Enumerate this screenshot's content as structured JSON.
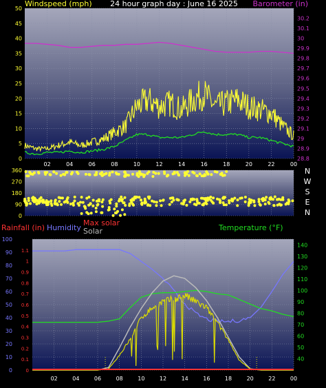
{
  "header": {
    "wind_label": "Windspeed (mph)",
    "title": "24 hour graph day : June 16 2025",
    "baro_label": "Barometer (in)"
  },
  "colors": {
    "background": "#000000",
    "wind_gust": "#ffff33",
    "wind_avg": "#22dd22",
    "barometer": "#cc33cc",
    "direction": "#ffff33",
    "rain": "#ff3333",
    "humidity": "#7777ff",
    "max_solar": "#bbbbbb",
    "solar": "#dddd00",
    "temperature": "#22dd22",
    "grid": "#8a8fa8"
  },
  "chart_data": [
    {
      "type": "line",
      "name": "wind_barometer",
      "x_ticks": [
        "02",
        "04",
        "06",
        "08",
        "10",
        "12",
        "14",
        "16",
        "18",
        "20",
        "22",
        "00"
      ],
      "x_hours": [
        0,
        1,
        2,
        3,
        4,
        5,
        6,
        7,
        8,
        9,
        10,
        11,
        12,
        13,
        14,
        15,
        16,
        17,
        18,
        19,
        20,
        21,
        22,
        23,
        24
      ],
      "left_axis": {
        "label": "Windspeed (mph)",
        "range": [
          0,
          50
        ],
        "ticks": [
          0,
          5,
          10,
          15,
          20,
          25,
          30,
          35,
          40,
          45,
          50
        ]
      },
      "right_axis": {
        "label": "Barometer (in)",
        "range": [
          28.8,
          30.3
        ],
        "ticks": [
          "28.8",
          "28.9",
          "29",
          "29.1",
          "29.2",
          "29.3",
          "29.4",
          "29.5",
          "29.6",
          "29.7",
          "29.8",
          "29.9",
          "30",
          "30.1",
          "30.2"
        ]
      },
      "series": [
        {
          "name": "gust",
          "axis": "left",
          "values": [
            4,
            3,
            3,
            4,
            5,
            4,
            5,
            6,
            8,
            10,
            16,
            18,
            16,
            17,
            15,
            18,
            20,
            16,
            17,
            18,
            16,
            15,
            14,
            10,
            7
          ]
        },
        {
          "name": "average",
          "axis": "left",
          "values": [
            2,
            1.5,
            2,
            2,
            2.5,
            2,
            2.5,
            3,
            4,
            6,
            8,
            8,
            7,
            7,
            7,
            8,
            9,
            8,
            8,
            8,
            7,
            7,
            6,
            5,
            4
          ]
        },
        {
          "name": "barometer",
          "axis": "right",
          "values": [
            29.95,
            29.95,
            29.94,
            29.93,
            29.91,
            29.91,
            29.92,
            29.93,
            29.93,
            29.94,
            29.94,
            29.95,
            29.96,
            29.95,
            29.93,
            29.91,
            29.89,
            29.87,
            29.86,
            29.86,
            29.86,
            29.87,
            29.87,
            29.86,
            29.85
          ]
        }
      ]
    },
    {
      "type": "scatter",
      "name": "wind_direction",
      "y_range": [
        0,
        360
      ],
      "y_ticks": [
        0,
        90,
        180,
        270,
        360
      ],
      "compass": [
        "N",
        "W",
        "S",
        "E",
        "N"
      ],
      "x_ticks": [
        "02",
        "04",
        "06",
        "08",
        "10",
        "12",
        "14",
        "16",
        "18",
        "20",
        "22",
        "00"
      ],
      "bands": [
        {
          "from_hour": 0,
          "to_hour": 24,
          "center": 115,
          "spread": 35
        },
        {
          "from_hour": 0,
          "to_hour": 18,
          "center": 330,
          "spread": 20
        },
        {
          "from_hour": 5,
          "to_hour": 9,
          "center": 40,
          "spread": 40
        }
      ]
    },
    {
      "type": "line",
      "name": "rain_humidity_solar_temperature",
      "legend": {
        "rain": "Rainfall (in)",
        "humidity": "Humidity",
        "max_solar": "Max solar",
        "solar": "Solar",
        "temperature": "Temperature (°F)"
      },
      "x_ticks": [
        "02",
        "04",
        "06",
        "08",
        "10",
        "12",
        "14",
        "16",
        "18",
        "20",
        "22",
        "00"
      ],
      "humidity_axis": {
        "range": [
          0,
          100
        ],
        "ticks": [
          0,
          10,
          20,
          30,
          40,
          50,
          60,
          70,
          80,
          90,
          100
        ]
      },
      "rain_axis": {
        "range": [
          0,
          1.2
        ],
        "ticks": [
          "0",
          "0.1",
          "0.2",
          "0.3",
          "0.4",
          "0.5",
          "0.6",
          "0.7",
          "0.8",
          "0.9",
          "1",
          "1.1"
        ]
      },
      "temp_axis": {
        "range": [
          30,
          145
        ],
        "ticks": [
          40,
          50,
          60,
          70,
          80,
          90,
          100,
          110,
          120,
          130,
          140
        ]
      },
      "series": [
        {
          "name": "humidity",
          "axis": "humidity",
          "values": [
            91,
            91,
            91,
            91,
            92,
            92,
            92,
            92,
            92,
            89,
            83,
            77,
            70,
            60,
            51,
            43,
            39,
            37,
            37,
            38,
            40,
            48,
            60,
            73,
            83
          ]
        },
        {
          "name": "temperature",
          "axis": "temp",
          "values": [
            72,
            72,
            72,
            72,
            72,
            72,
            72,
            73,
            75,
            85,
            94,
            97,
            98,
            98,
            99,
            100,
            99,
            97,
            96,
            92,
            88,
            84,
            82,
            79,
            77
          ]
        },
        {
          "name": "max_solar",
          "axis": "humidity",
          "values": [
            0,
            0,
            0,
            0,
            0,
            0,
            0,
            2,
            17,
            33,
            47,
            59,
            68,
            72,
            70,
            63,
            53,
            40,
            25,
            10,
            1,
            0,
            0,
            0,
            0
          ]
        },
        {
          "name": "solar",
          "axis": "humidity",
          "values": [
            0,
            0,
            0,
            0,
            0,
            0,
            0,
            1,
            12,
            25,
            42,
            50,
            55,
            57,
            60,
            55,
            50,
            38,
            24,
            8,
            1,
            0,
            0,
            0,
            0
          ]
        },
        {
          "name": "rain",
          "axis": "rain",
          "values": [
            0,
            0,
            0,
            0,
            0,
            0,
            0,
            0,
            0,
            0,
            0,
            0,
            0,
            0,
            0,
            0,
            0,
            0,
            0,
            0,
            0,
            0,
            0,
            0,
            0
          ]
        }
      ]
    }
  ]
}
